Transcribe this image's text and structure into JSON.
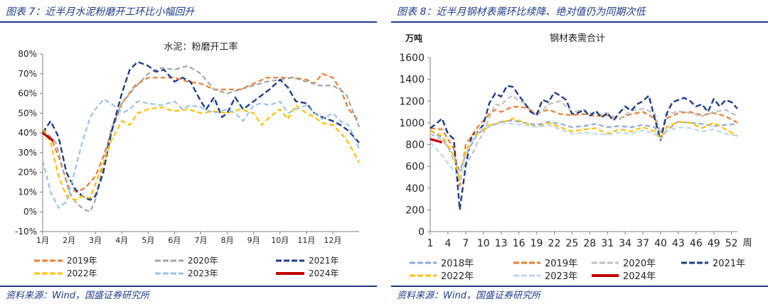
{
  "left": {
    "panel_title": "图表 7：近半月水泥粉磨开工环比小幅回升",
    "source": "资料来源：Wind，国盛证券研究所",
    "chart_data": {
      "type": "line",
      "title": "水泥：粉磨开工率",
      "ylim": [
        -10,
        80
      ],
      "yticks": [
        -10,
        0,
        10,
        20,
        30,
        40,
        50,
        60,
        70,
        80
      ],
      "ytick_labels": [
        "-10%",
        "0%",
        "10%",
        "20%",
        "30%",
        "40%",
        "50%",
        "60%",
        "70%",
        "80%"
      ],
      "xlim": [
        0,
        12
      ],
      "xtick_labels": [
        "1月",
        "2月",
        "3月",
        "4月",
        "5月",
        "6月",
        "7月",
        "8月",
        "9月",
        "10月",
        "11月",
        "12月"
      ],
      "series": [
        {
          "name": "2019年",
          "color": "#ed7d31",
          "width": 2.2,
          "dash": "7,4",
          "x": [
            0,
            0.3,
            0.6,
            1,
            1.3,
            1.6,
            2,
            2.3,
            2.6,
            3,
            3.5,
            4,
            4.5,
            5,
            5.5,
            6,
            6.5,
            7,
            7.5,
            8,
            8.5,
            9,
            9.5,
            10,
            10.3,
            10.6,
            11,
            11.3,
            11.6,
            12
          ],
          "y": [
            42,
            38,
            28,
            12,
            10,
            12,
            18,
            28,
            40,
            55,
            64,
            68,
            68,
            68,
            66,
            65,
            62,
            62,
            62,
            65,
            68,
            68,
            68,
            67,
            65,
            70,
            68,
            62,
            52,
            46
          ]
        },
        {
          "name": "2020年",
          "color": "#a5a5a5",
          "width": 2.2,
          "dash": "7,4",
          "x": [
            0,
            0.5,
            1,
            1.3,
            1.6,
            1.8,
            2,
            2.3,
            2.6,
            3,
            3.5,
            4,
            4.5,
            5,
            5.5,
            6,
            6.5,
            7,
            7.5,
            8,
            8.5,
            9,
            9.5,
            10,
            10.5,
            11,
            11.5,
            12
          ],
          "y": [
            42,
            35,
            10,
            4,
            1,
            0,
            6,
            24,
            42,
            55,
            63,
            70,
            73,
            72,
            74,
            70,
            62,
            60,
            62,
            64,
            66,
            67,
            68,
            66,
            64,
            64,
            60,
            43
          ]
        },
        {
          "name": "2021年",
          "color": "#1f3c88",
          "width": 2.4,
          "dash": "8,4",
          "x": [
            0,
            0.3,
            0.6,
            0.9,
            1.2,
            1.5,
            1.8,
            2,
            2.3,
            2.6,
            3,
            3.3,
            3.6,
            4,
            4.3,
            4.6,
            5,
            5.3,
            5.6,
            6,
            6.2,
            6.5,
            6.8,
            7,
            7.3,
            7.6,
            8,
            8.3,
            8.6,
            9,
            9.3,
            9.6,
            10,
            10.3,
            10.6,
            11,
            11.3,
            11.6,
            12
          ],
          "y": [
            40,
            46,
            38,
            20,
            12,
            8,
            6,
            8,
            20,
            40,
            60,
            72,
            76,
            74,
            71,
            72,
            66,
            68,
            66,
            56,
            52,
            58,
            48,
            50,
            58,
            52,
            56,
            59,
            62,
            67,
            63,
            56,
            55,
            50,
            48,
            46,
            44,
            41,
            35
          ]
        },
        {
          "name": "2022年",
          "color": "#ffc000",
          "width": 2.2,
          "dash": "7,4",
          "x": [
            0,
            0.3,
            0.6,
            0.9,
            1.2,
            1.5,
            1.8,
            2,
            2.3,
            2.6,
            3,
            3.3,
            3.6,
            4,
            4.5,
            5,
            5.5,
            6,
            6.5,
            7,
            7.5,
            8,
            8.3,
            8.6,
            9,
            9.3,
            9.6,
            10,
            10.3,
            10.6,
            11,
            11.3,
            11.6,
            12
          ],
          "y": [
            42,
            35,
            18,
            8,
            6,
            8,
            7,
            14,
            25,
            36,
            46,
            44,
            50,
            52,
            53,
            51,
            52,
            50,
            51,
            50,
            52,
            50,
            44,
            48,
            52,
            47,
            54,
            50,
            48,
            45,
            44,
            40,
            35,
            25
          ]
        },
        {
          "name": "2023年",
          "color": "#9dc3e6",
          "width": 2.2,
          "dash": "7,4",
          "x": [
            0,
            0.3,
            0.6,
            0.9,
            1.2,
            1.5,
            1.8,
            2,
            2.3,
            2.6,
            3,
            3.3,
            3.6,
            4,
            4.5,
            5,
            5.3,
            5.6,
            6,
            6.5,
            7,
            7.3,
            7.6,
            8,
            8.3,
            8.6,
            9,
            9.3,
            9.6,
            10,
            10.3,
            10.6,
            11,
            11.3,
            11.6,
            12
          ],
          "y": [
            26,
            10,
            2,
            5,
            20,
            35,
            48,
            52,
            57,
            55,
            50,
            52,
            56,
            55,
            54,
            56,
            52,
            54,
            53,
            50,
            52,
            50,
            46,
            54,
            55,
            54,
            56,
            50,
            52,
            54,
            50,
            47,
            50,
            46,
            44,
            32
          ]
        },
        {
          "name": "2024年",
          "color": "#c00000",
          "width": 3.2,
          "dash": "",
          "x": [
            0,
            0.2,
            0.4
          ],
          "y": [
            40,
            38,
            36
          ]
        }
      ]
    }
  },
  "right": {
    "panel_title": "图表 8：近半月钢材表需环比续降、绝对值仍为同期次低",
    "source": "资料来源：Wind，国盛证券研究所",
    "chart_data": {
      "type": "line",
      "title": "钢材表需合计",
      "ylabel": "万吨",
      "xlabel": "周",
      "ylim": [
        0,
        1600
      ],
      "yticks": [
        0,
        200,
        400,
        600,
        800,
        1000,
        1200,
        1400,
        1600
      ],
      "ytick_labels": [
        "0",
        "200",
        "400",
        "600",
        "800",
        "1000",
        "1200",
        "1400",
        "1600"
      ],
      "xlim": [
        1,
        53
      ],
      "xticks": [
        1,
        4,
        7,
        10,
        13,
        16,
        19,
        22,
        25,
        28,
        31,
        34,
        37,
        40,
        43,
        46,
        49,
        52
      ],
      "xtick_labels": [
        "1",
        "4",
        "7",
        "10",
        "13",
        "16",
        "19",
        "22",
        "25",
        "28",
        "31",
        "34",
        "37",
        "40",
        "43",
        "46",
        "49",
        "52"
      ],
      "series": [
        {
          "name": "2018年",
          "color": "#8faadc",
          "width": 2.2,
          "dash": "7,4",
          "x": [
            1,
            3,
            5,
            6,
            7,
            9,
            11,
            13,
            15,
            17,
            19,
            21,
            23,
            25,
            27,
            29,
            31,
            33,
            35,
            37,
            39,
            40,
            41,
            43,
            45,
            47,
            49,
            51,
            53
          ],
          "y": [
            930,
            860,
            700,
            560,
            700,
            900,
            970,
            1010,
            1020,
            1000,
            980,
            1010,
            990,
            960,
            970,
            990,
            960,
            970,
            960,
            980,
            960,
            840,
            930,
            1010,
            1000,
            990,
            970,
            980,
            990
          ]
        },
        {
          "name": "2019年",
          "color": "#ed7d31",
          "width": 2.2,
          "dash": "7,4",
          "x": [
            1,
            3,
            5,
            6,
            7,
            9,
            11,
            12,
            13,
            15,
            17,
            19,
            21,
            23,
            25,
            27,
            29,
            31,
            33,
            35,
            37,
            39,
            40,
            41,
            43,
            45,
            47,
            49,
            51,
            53
          ],
          "y": [
            950,
            940,
            760,
            420,
            800,
            960,
            1080,
            1120,
            1100,
            1150,
            1140,
            1090,
            1120,
            1080,
            1070,
            1080,
            1060,
            1070,
            1040,
            1080,
            1100,
            1040,
            900,
            1040,
            1090,
            1100,
            1070,
            1090,
            1060,
            1000
          ]
        },
        {
          "name": "2020年",
          "color": "#bfbfbf",
          "width": 2.2,
          "dash": "7,4",
          "x": [
            1,
            2,
            3,
            4,
            5,
            6,
            7,
            8,
            9,
            10,
            11,
            12,
            13,
            14,
            15,
            16,
            17,
            19,
            21,
            23,
            25,
            27,
            29,
            31,
            33,
            35,
            37,
            39,
            40,
            41,
            43,
            45,
            47,
            49,
            51,
            53
          ],
          "y": [
            900,
            870,
            840,
            780,
            650,
            560,
            620,
            700,
            820,
            900,
            1050,
            1170,
            1160,
            1220,
            1250,
            1200,
            1180,
            1060,
            1170,
            1200,
            1100,
            1120,
            1070,
            1090,
            1030,
            1110,
            1130,
            1090,
            900,
            1070,
            1110,
            1090,
            1060,
            1100,
            1120,
            1060
          ]
        },
        {
          "name": "2021年",
          "color": "#1f3c88",
          "width": 2.4,
          "dash": "8,4",
          "x": [
            1,
            2,
            3,
            4,
            5,
            6,
            7,
            8,
            9,
            10,
            11,
            12,
            13,
            14,
            15,
            16,
            17,
            18,
            19,
            20,
            21,
            22,
            23,
            24,
            25,
            26,
            27,
            28,
            29,
            30,
            31,
            32,
            33,
            34,
            35,
            36,
            37,
            38,
            39,
            40,
            41,
            42,
            43,
            44,
            45,
            46,
            47,
            48,
            49,
            50,
            51,
            52,
            53
          ],
          "y": [
            950,
            990,
            1040,
            900,
            850,
            200,
            600,
            880,
            920,
            980,
            1180,
            1270,
            1240,
            1340,
            1330,
            1250,
            1180,
            1100,
            1070,
            1210,
            1190,
            1280,
            1250,
            1210,
            1080,
            1090,
            1120,
            1060,
            1110,
            1050,
            1090,
            1020,
            1090,
            1150,
            1110,
            1170,
            1200,
            1250,
            1040,
            840,
            1080,
            1190,
            1210,
            1230,
            1200,
            1150,
            1170,
            1100,
            1220,
            1150,
            1210,
            1190,
            1130
          ]
        },
        {
          "name": "2022年",
          "color": "#ffc000",
          "width": 2.2,
          "dash": "7,4",
          "x": [
            1,
            3,
            5,
            6,
            7,
            9,
            11,
            13,
            15,
            17,
            19,
            21,
            23,
            25,
            27,
            29,
            31,
            33,
            35,
            37,
            39,
            40,
            41,
            43,
            45,
            47,
            49,
            51,
            53
          ],
          "y": [
            930,
            880,
            700,
            470,
            750,
            900,
            980,
            1000,
            1040,
            1000,
            960,
            1000,
            960,
            920,
            940,
            950,
            900,
            940,
            920,
            960,
            920,
            860,
            960,
            1010,
            1000,
            950,
            1000,
            940,
            880
          ]
        },
        {
          "name": "2023年",
          "color": "#bdd7ee",
          "width": 2.2,
          "dash": "7,4",
          "x": [
            1,
            3,
            5,
            6,
            7,
            9,
            11,
            13,
            15,
            17,
            19,
            21,
            23,
            25,
            27,
            29,
            31,
            33,
            35,
            37,
            39,
            40,
            41,
            43,
            45,
            47,
            49,
            51,
            53
          ],
          "y": [
            820,
            700,
            560,
            480,
            700,
            940,
            960,
            1000,
            990,
            980,
            960,
            980,
            940,
            900,
            910,
            900,
            890,
            910,
            900,
            930,
            900,
            850,
            920,
            960,
            950,
            920,
            940,
            900,
            880
          ]
        },
        {
          "name": "2024年",
          "color": "#c00000",
          "width": 3.2,
          "dash": "",
          "x": [
            1,
            2,
            3
          ],
          "y": [
            850,
            835,
            820
          ]
        }
      ]
    }
  }
}
